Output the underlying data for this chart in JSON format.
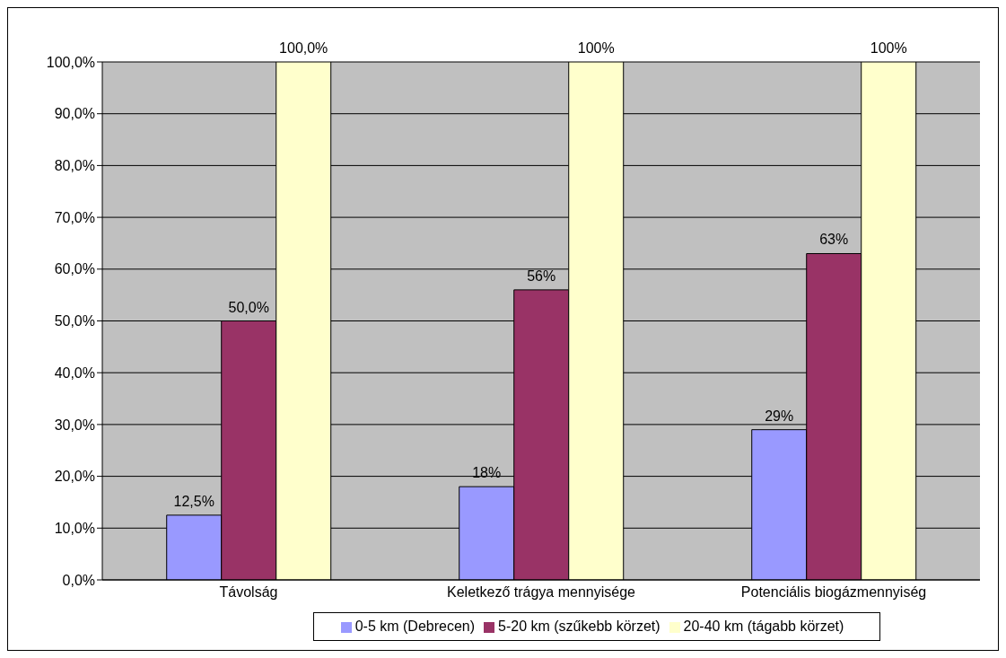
{
  "chart_data": {
    "type": "bar",
    "categories": [
      "Távolság",
      "Keletkező trágya mennyisége",
      "Potenciális biogázmennyiség"
    ],
    "series": [
      {
        "name": "0-5 km (Debrecen)",
        "color": "#9999ff",
        "values": [
          12.5,
          18,
          29
        ],
        "value_labels": [
          "12,5%",
          "18%",
          "29%"
        ]
      },
      {
        "name": "5-20 km (szűkebb körzet)",
        "color": "#993366",
        "values": [
          50,
          56,
          63
        ],
        "value_labels": [
          "50,0%",
          "56%",
          "63%"
        ]
      },
      {
        "name": "20-40 km (tágabb körzet)",
        "color": "#ffffcc",
        "values": [
          100,
          100,
          100
        ],
        "value_labels": [
          "100,0%",
          "100%",
          "100%"
        ]
      }
    ],
    "ylim": [
      0,
      100
    ],
    "yticks": [
      {
        "value": 0,
        "label": "0,0%"
      },
      {
        "value": 10,
        "label": "10,0%"
      },
      {
        "value": 20,
        "label": "20,0%"
      },
      {
        "value": 30,
        "label": "30,0%"
      },
      {
        "value": 40,
        "label": "40,0%"
      },
      {
        "value": 50,
        "label": "50,0%"
      },
      {
        "value": 60,
        "label": "60,0%"
      },
      {
        "value": 70,
        "label": "70,0%"
      },
      {
        "value": 80,
        "label": "80,0%"
      },
      {
        "value": 90,
        "label": "90,0%"
      },
      {
        "value": 100,
        "label": "100,0%"
      }
    ],
    "grid": "y",
    "legend": "bottom"
  }
}
